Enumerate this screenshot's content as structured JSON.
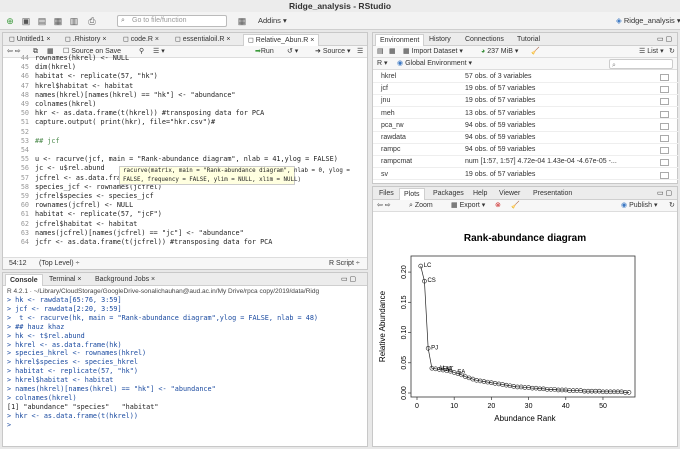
{
  "window": {
    "title": "Ridge_analysis - RStudio"
  },
  "toolbar": {
    "goto_placeholder": "Go to file/function",
    "addins_label": "Addins",
    "project_label": "Ridge_analysis"
  },
  "editor": {
    "tabs": [
      "Untitled1",
      ".Rhistory",
      "code.R",
      "essentialoil.R",
      "Relative_Abun.R"
    ],
    "source_on_save": "Source on Save",
    "run_label": "Run",
    "source_label": "Source",
    "lines": [
      {
        "n": "44",
        "t": "rownames(hkrel) <- NULL"
      },
      {
        "n": "45",
        "t": "dim(hkrel)"
      },
      {
        "n": "46",
        "t": "habitat <- replicate(57, \"hk\")"
      },
      {
        "n": "47",
        "t": "hkrel$habitat <- habitat"
      },
      {
        "n": "48",
        "t": "names(hkrel)[names(hkrel) == \"hk\"] <- \"abundance\""
      },
      {
        "n": "49",
        "t": "colnames(hkrel)"
      },
      {
        "n": "50",
        "t": "hkr <- as.data.frame(t(hkrel)) #transposing data for PCA"
      },
      {
        "n": "51",
        "t": "capture.output( print(hkr), file=\"hkr.csv\")#"
      },
      {
        "n": "52",
        "t": ""
      },
      {
        "n": "53",
        "t": "## jcf"
      },
      {
        "n": "54",
        "t": ""
      },
      {
        "n": "55",
        "t": "u <- racurve(jcf, main = \"Rank-abundance diagram\", nlab = 41,ylog = FALSE)"
      },
      {
        "n": "56",
        "t": "jc <- u$rel.abund"
      },
      {
        "n": "57",
        "t": "jcfrel <- as.data.frame(jc)"
      },
      {
        "n": "58",
        "t": "species_jcf <- rownames(jcfrel)"
      },
      {
        "n": "59",
        "t": "jcfrel$species <- species_jcf"
      },
      {
        "n": "60",
        "t": "rownames(jcfrel) <- NULL"
      },
      {
        "n": "61",
        "t": "habitat <- replicate(57, \"jcF\")"
      },
      {
        "n": "62",
        "t": "jcfrel$habitat <- habitat"
      },
      {
        "n": "63",
        "t": "names(jcfrel)[names(jcfrel) == \"jc\"] <- \"abundance\""
      },
      {
        "n": "64",
        "t": "jcfr <- as.data.frame(t(jcfrel)) #transposing data for PCA"
      }
    ],
    "tooltip_line1": "racurve(matrix, main = \"Rank-abundance diagram\", nlab = 0, ylog =",
    "tooltip_line2": "FALSE, frequency = FALSE, ylim = NULL, xlim = NULL)",
    "status_pos": "54:12",
    "status_level": "(Top Level)",
    "status_type": "R Script"
  },
  "console": {
    "tabs": [
      "Console",
      "Terminal",
      "Background Jobs"
    ],
    "path": "R 4.2.1 · ~/Library/CloudStorage/GoogleDrive-sonalichauhan@aud.ac.in/My Drive/rpca copy/2019/data/Ridg",
    "lines": [
      {
        "t": "> hk <- rawdata[65:76, 3:59]",
        "out": false
      },
      {
        "t": "> jcf <- rawdata[2:20, 3:59]",
        "out": false
      },
      {
        "t": ">  t <- racurve(hk, main = \"Rank-abundance diagram\",ylog = FALSE, nlab = 48)",
        "out": false
      },
      {
        "t": "> ## hauz khaz",
        "out": false
      },
      {
        "t": "> hk <- t$rel.abund",
        "out": false
      },
      {
        "t": "> hkrel <- as.data.frame(hk)",
        "out": false
      },
      {
        "t": "> species_hkrel <- rownames(hkrel)",
        "out": false
      },
      {
        "t": "> hkrel$species <- species_hkrel",
        "out": false
      },
      {
        "t": "> habitat <- replicate(57, \"hk\")",
        "out": false
      },
      {
        "t": "> hkrel$habitat <- habitat",
        "out": false
      },
      {
        "t": "> names(hkrel)[names(hkrel) == \"hk\"] <- \"abundance\"",
        "out": false
      },
      {
        "t": "> colnames(hkrel)",
        "out": false
      },
      {
        "t": "[1] \"abundance\" \"species\"   \"habitat\"",
        "out": true
      },
      {
        "t": "> hkr <- as.data.frame(t(hkrel))",
        "out": false
      },
      {
        "t": "> ",
        "out": false
      }
    ]
  },
  "environment": {
    "tabs": [
      "Environment",
      "History",
      "Connections",
      "Tutorial"
    ],
    "import_label": "Import Dataset",
    "memory_label": "237 MiB",
    "list_label": "List",
    "lang_label": "R",
    "scope_label": "Global Environment",
    "rows": [
      {
        "name": "hkrel",
        "value": "57 obs. of 3 variables"
      },
      {
        "name": "jcf",
        "value": "19 obs. of 57 variables"
      },
      {
        "name": "jnu",
        "value": "19 obs. of 57 variables"
      },
      {
        "name": "meh",
        "value": "13 obs. of 57 variables"
      },
      {
        "name": "pca_rw",
        "value": "94 obs. of 59 variables"
      },
      {
        "name": "rawdata",
        "value": "94 obs. of 59 variables"
      },
      {
        "name": "rampc",
        "value": "94 obs. of 59 variables"
      },
      {
        "name": "rampcmat",
        "value": "num [1:57, 1:57] 4.72e-04 1.43e-04 -4.67e-05 -..."
      },
      {
        "name": "sv",
        "value": "19 obs. of 57 variables"
      }
    ]
  },
  "files": {
    "tabs": [
      "Files",
      "Plots",
      "Packages",
      "Help",
      "Viewer",
      "Presentation"
    ],
    "zoom_label": "Zoom",
    "export_label": "Export",
    "publish_label": "Publish"
  },
  "chart_data": {
    "type": "line",
    "title": "Rank-abundance diagram",
    "xlabel": "Abundance Rank",
    "ylabel": "Relative Abundance",
    "xlim": [
      0,
      57
    ],
    "ylim": [
      0,
      0.22
    ],
    "xticks": [
      0,
      10,
      20,
      30,
      40,
      50
    ],
    "yticks": [
      0.0,
      0.05,
      0.1,
      0.15,
      0.2
    ],
    "x": [
      1,
      2,
      3,
      4,
      5,
      6,
      7,
      8,
      9,
      10,
      11,
      12,
      13,
      14,
      15,
      16,
      17,
      18,
      19,
      20,
      21,
      22,
      23,
      24,
      25,
      26,
      27,
      28,
      29,
      30,
      31,
      32,
      33,
      34,
      35,
      36,
      37,
      38,
      39,
      40,
      41,
      42,
      43,
      44,
      45,
      46,
      47,
      48,
      49,
      50,
      51,
      52,
      53,
      54,
      55,
      56,
      57
    ],
    "y": [
      0.21,
      0.185,
      0.074,
      0.041,
      0.04,
      0.039,
      0.038,
      0.037,
      0.036,
      0.034,
      0.032,
      0.03,
      0.027,
      0.025,
      0.023,
      0.021,
      0.02,
      0.019,
      0.018,
      0.017,
      0.016,
      0.015,
      0.014,
      0.013,
      0.012,
      0.011,
      0.01,
      0.01,
      0.009,
      0.009,
      0.008,
      0.008,
      0.007,
      0.007,
      0.006,
      0.006,
      0.006,
      0.005,
      0.005,
      0.005,
      0.004,
      0.004,
      0.004,
      0.004,
      0.003,
      0.003,
      0.003,
      0.003,
      0.003,
      0.002,
      0.002,
      0.002,
      0.002,
      0.002,
      0.002,
      0.001,
      0.001
    ],
    "point_labels": [
      {
        "i": 0,
        "text": "LC"
      },
      {
        "i": 1,
        "text": "CS"
      },
      {
        "i": 2,
        "text": "PJ"
      },
      {
        "i": 4,
        "text": "AI"
      },
      {
        "i": 5,
        "text": "FM"
      },
      {
        "i": 6,
        "text": "AT"
      },
      {
        "i": 9,
        "text": "SA"
      }
    ]
  }
}
